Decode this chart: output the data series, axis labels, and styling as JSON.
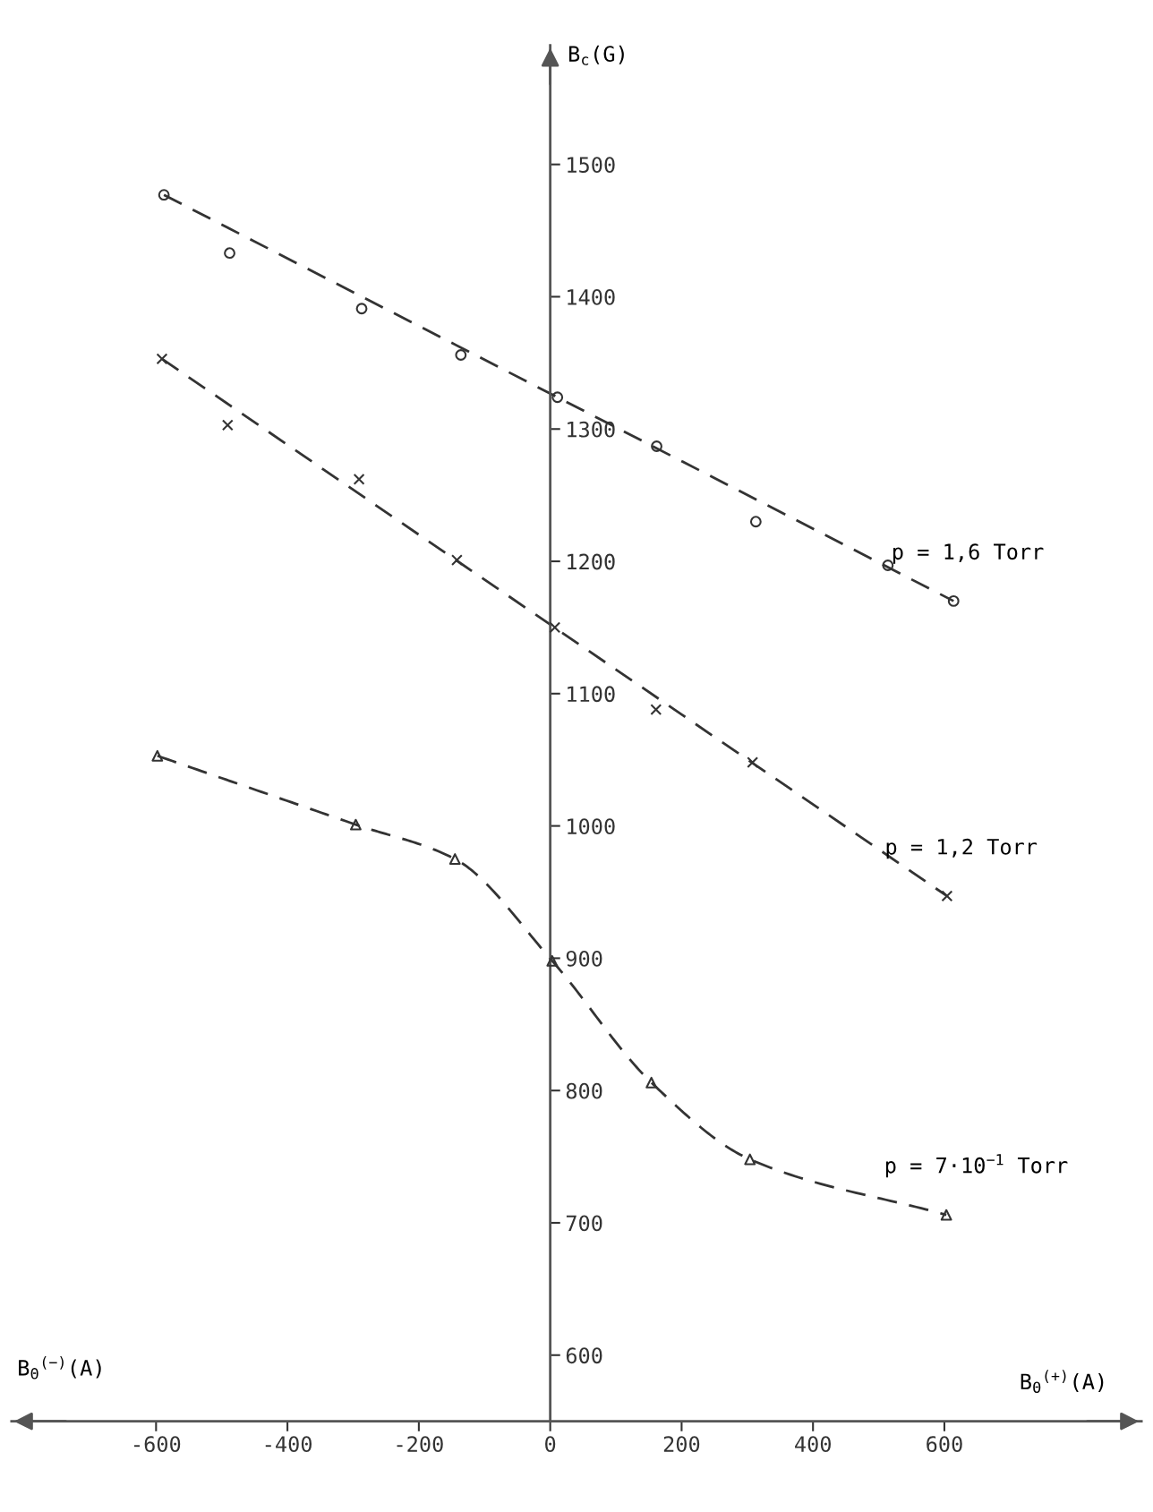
{
  "chart_data": {
    "type": "scatter",
    "ylabel": "B$_{c}$(G)",
    "xlabel": "B$_{Θ}$$^{(+)}$(A)",
    "annotations": [
      "B$_{Θ}$$^{(−)}$(A)"
    ],
    "xlim": [
      -820,
      900
    ],
    "ylim": [
      550,
      1590
    ],
    "xticks": [
      -600,
      -400,
      -200,
      0,
      200,
      400,
      600
    ],
    "yticks": [
      600,
      700,
      800,
      900,
      1000,
      1100,
      1200,
      1300,
      1400,
      1500
    ],
    "grid": false,
    "legend": false,
    "series": [
      {
        "name": "p = 1,6 Torr",
        "marker": "circle",
        "color": "#333333",
        "x": [
          -588,
          -488,
          -287,
          -136,
          11,
          162,
          313,
          514,
          614
        ],
        "values": [
          1477,
          1433,
          1391,
          1356,
          1324,
          1287,
          1230,
          1197,
          1170
        ]
      },
      {
        "type": "line",
        "line_style": "dashed",
        "marker": "none",
        "color": "#333333",
        "x": [
          -588,
          614
        ],
        "values": [
          1477,
          1170
        ]
      },
      {
        "name": "p = 1,2 Torr",
        "marker": "cross",
        "color": "#333333",
        "x": [
          -591,
          -491,
          -291,
          -142,
          7,
          161,
          308,
          604
        ],
        "values": [
          1353,
          1303,
          1262,
          1201,
          1150,
          1088,
          1048,
          947
        ]
      },
      {
        "type": "line",
        "line_style": "dashed",
        "marker": "none",
        "color": "#333333",
        "x": [
          -591,
          604
        ],
        "values": [
          1353,
          947
        ]
      },
      {
        "name": "p = 7·10$^{−1}$ Torr",
        "type": "line",
        "line_style": "dashed",
        "marker": "triangle",
        "color": "#333333",
        "x": [
          -598,
          -296,
          -145,
          3,
          154,
          304,
          603
        ],
        "values": [
          1053,
          1001,
          975,
          898,
          806,
          748,
          706
        ]
      }
    ]
  }
}
